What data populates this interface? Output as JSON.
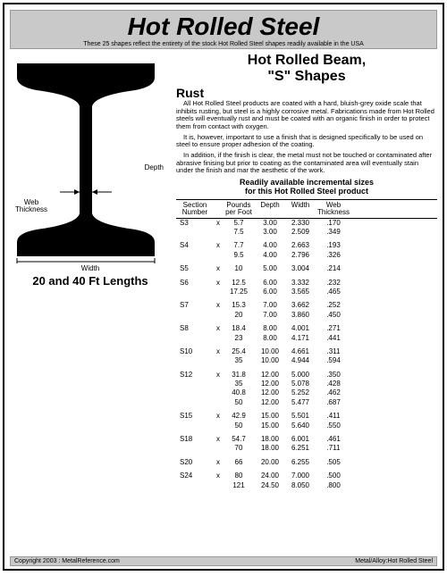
{
  "header": {
    "title": "Hot Rolled Steel",
    "subtitle": "These 25 shapes reflect the entirety of the stock Hot Rolled Steel shapes readily available in the USA"
  },
  "shape_number": "18",
  "diagram": {
    "depth_label": "Depth",
    "web_label_1": "Web",
    "web_label_2": "Thickness",
    "width_label": "Width",
    "lengths": "20 and 40 Ft Lengths",
    "beam_color": "#000000"
  },
  "right_title_1": "Hot Rolled Beam,",
  "right_title_2": "\"S\" Shapes",
  "rust": {
    "heading": "Rust",
    "p1": "All Hot Rolled Steel products are coated with a hard, bluish-grey oxide scale that inhibits rusting, but steel is a highly corrosive metal. Fabrications made from Hot Rolled steels will eventually rust and must be coated with an organic finish in order to protect them from contact with oxygen.",
    "p2": "It is, however, important to use a finish that is designed specifically to be used on steel to ensure proper adhesion of the coating.",
    "p3": "In addition, if the finish is clear, the metal must not be touched or contaminated after abrasive finising but prior to coating as the contaminated area will eventually stain under the finish and mar the aesthetic of the work."
  },
  "table": {
    "title_1": "Readily available incremental sizes",
    "title_2": "for this Hot Rolled Steel product",
    "head": {
      "section": "Section Number",
      "x": "",
      "ppf": "Pounds per Foot",
      "depth": "Depth",
      "width": "Width",
      "web": "Web Thickness"
    },
    "groups": [
      {
        "section": "S3",
        "rows": [
          [
            "5.7",
            "3.00",
            "2.330",
            ".170"
          ],
          [
            "7.5",
            "3.00",
            "2.509",
            ".349"
          ]
        ]
      },
      {
        "section": "S4",
        "rows": [
          [
            "7.7",
            "4.00",
            "2.663",
            ".193"
          ],
          [
            "9.5",
            "4.00",
            "2.796",
            ".326"
          ]
        ]
      },
      {
        "section": "S5",
        "rows": [
          [
            "10",
            "5.00",
            "3.004",
            ".214"
          ]
        ]
      },
      {
        "section": "S6",
        "rows": [
          [
            "12.5",
            "6.00",
            "3.332",
            ".232"
          ],
          [
            "17.25",
            "6.00",
            "3.565",
            ".465"
          ]
        ]
      },
      {
        "section": "S7",
        "rows": [
          [
            "15.3",
            "7.00",
            "3.662",
            ".252"
          ],
          [
            "20",
            "7.00",
            "3.860",
            ".450"
          ]
        ]
      },
      {
        "section": "S8",
        "rows": [
          [
            "18.4",
            "8.00",
            "4.001",
            ".271"
          ],
          [
            "23",
            "8.00",
            "4.171",
            ".441"
          ]
        ]
      },
      {
        "section": "S10",
        "rows": [
          [
            "25.4",
            "10.00",
            "4.661",
            ".311"
          ],
          [
            "35",
            "10.00",
            "4.944",
            ".594"
          ]
        ]
      },
      {
        "section": "S12",
        "rows": [
          [
            "31.8",
            "12.00",
            "5.000",
            ".350"
          ],
          [
            "35",
            "12.00",
            "5.078",
            ".428"
          ],
          [
            "40.8",
            "12.00",
            "5.252",
            ".462"
          ],
          [
            "50",
            "12.00",
            "5.477",
            ".687"
          ]
        ]
      },
      {
        "section": "S15",
        "rows": [
          [
            "42.9",
            "15.00",
            "5.501",
            ".411"
          ],
          [
            "50",
            "15.00",
            "5.640",
            ".550"
          ]
        ]
      },
      {
        "section": "S18",
        "rows": [
          [
            "54.7",
            "18.00",
            "6.001",
            ".461"
          ],
          [
            "70",
            "18.00",
            "6.251",
            ".711"
          ]
        ]
      },
      {
        "section": "S20",
        "rows": [
          [
            "66",
            "20.00",
            "6.255",
            ".505"
          ]
        ]
      },
      {
        "section": "S24",
        "rows": [
          [
            "80",
            "24.00",
            "7.000",
            ".500"
          ],
          [
            "121",
            "24.50",
            "8.050",
            ".800"
          ]
        ]
      }
    ]
  },
  "footer": {
    "left": "Copyright 2003 : MetalReference.com",
    "right": "Metal/Alloy:Hot Rolled Steel"
  }
}
